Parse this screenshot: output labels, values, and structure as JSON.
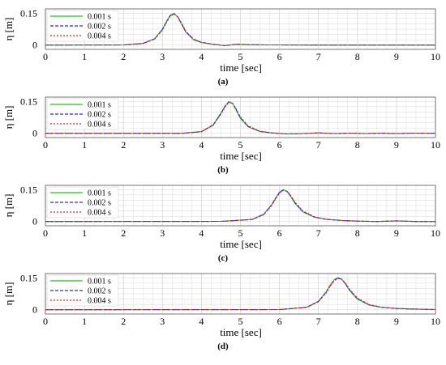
{
  "colors": {
    "s1": "#22c322",
    "s2": "#2a2ad8",
    "s3": "#e02020",
    "grid": "#d6d6d6",
    "axis": "#000000"
  },
  "chart_data": [
    {
      "type": "line",
      "caption": "(a)",
      "xlabel": "time [sec]",
      "ylabel": "η [m]",
      "xlim": [
        0,
        10
      ],
      "ylim": [
        -0.02,
        0.17
      ],
      "xticks": [
        "0",
        "1",
        "2",
        "3",
        "4",
        "5",
        "6",
        "7",
        "8",
        "9",
        "10"
      ],
      "yticks": [
        "0",
        "0.15"
      ],
      "grid": true,
      "legend_position": "top-left",
      "x": [
        0,
        2.0,
        2.5,
        2.8,
        3.0,
        3.1,
        3.2,
        3.3,
        3.4,
        3.5,
        3.6,
        3.8,
        4.0,
        4.3,
        4.6,
        4.9,
        5.2,
        5.6,
        6.0,
        7.0,
        8.0,
        9.0,
        10.0
      ],
      "series": [
        {
          "name": "0.001 s",
          "values": [
            0,
            0.001,
            0.008,
            0.03,
            0.075,
            0.11,
            0.14,
            0.149,
            0.13,
            0.095,
            0.06,
            0.025,
            0.012,
            0.004,
            -0.002,
            0.004,
            0.002,
            0.001,
            0.001,
            0.0,
            0.0,
            0.0,
            0.0
          ]
        },
        {
          "name": "0.002 s",
          "values": [
            0,
            0.001,
            0.008,
            0.029,
            0.073,
            0.108,
            0.138,
            0.147,
            0.131,
            0.098,
            0.063,
            0.027,
            0.013,
            0.004,
            -0.002,
            0.004,
            0.002,
            0.001,
            0.001,
            0.0,
            0.0,
            0.0,
            0.0
          ]
        },
        {
          "name": "0.004 s",
          "values": [
            0,
            0.001,
            0.007,
            0.028,
            0.07,
            0.105,
            0.135,
            0.146,
            0.132,
            0.1,
            0.065,
            0.028,
            0.013,
            0.004,
            -0.002,
            0.004,
            0.002,
            0.001,
            0.001,
            0.0,
            0.0,
            0.0,
            0.0
          ]
        }
      ]
    },
    {
      "type": "line",
      "caption": "(b)",
      "xlabel": "time [sec]",
      "ylabel": "η [m]",
      "xlim": [
        0,
        10
      ],
      "ylim": [
        -0.02,
        0.17
      ],
      "xticks": [
        "0",
        "1",
        "2",
        "3",
        "4",
        "5",
        "6",
        "7",
        "8",
        "9",
        "10"
      ],
      "yticks": [
        "0",
        "0.15"
      ],
      "grid": true,
      "legend_position": "top-left",
      "x": [
        0,
        3.5,
        4.0,
        4.3,
        4.5,
        4.6,
        4.7,
        4.8,
        4.9,
        5.0,
        5.2,
        5.5,
        5.8,
        6.2,
        6.6,
        7.0,
        7.4,
        7.8,
        8.2,
        8.6,
        9.0,
        9.4,
        10.0
      ],
      "series": [
        {
          "name": "0.001 s",
          "values": [
            0,
            0.0,
            0.008,
            0.04,
            0.095,
            0.128,
            0.149,
            0.14,
            0.105,
            0.07,
            0.03,
            0.008,
            0.002,
            -0.003,
            -0.001,
            0.002,
            -0.001,
            0.001,
            -0.001,
            0.001,
            -0.001,
            0.001,
            0.0
          ]
        },
        {
          "name": "0.002 s",
          "values": [
            0,
            0.0,
            0.008,
            0.039,
            0.093,
            0.126,
            0.147,
            0.141,
            0.108,
            0.073,
            0.032,
            0.009,
            0.002,
            -0.003,
            -0.001,
            0.002,
            -0.001,
            0.001,
            -0.001,
            0.001,
            -0.001,
            0.001,
            0.0
          ]
        },
        {
          "name": "0.004 s",
          "values": [
            0,
            0.0,
            0.007,
            0.037,
            0.09,
            0.123,
            0.145,
            0.142,
            0.112,
            0.077,
            0.035,
            0.01,
            0.003,
            -0.003,
            -0.001,
            0.002,
            -0.001,
            0.001,
            -0.001,
            0.001,
            -0.001,
            0.001,
            0.0
          ]
        }
      ]
    },
    {
      "type": "line",
      "caption": "(c)",
      "xlabel": "time [sec]",
      "ylabel": "η [m]",
      "xlim": [
        0,
        10
      ],
      "ylim": [
        -0.02,
        0.17
      ],
      "xticks": [
        "0",
        "1",
        "2",
        "3",
        "4",
        "5",
        "6",
        "7",
        "8",
        "9",
        "10"
      ],
      "yticks": [
        "0",
        "0.15"
      ],
      "grid": true,
      "legend_position": "top-left",
      "x": [
        0,
        4.5,
        5.3,
        5.6,
        5.8,
        5.9,
        6.0,
        6.1,
        6.2,
        6.3,
        6.4,
        6.6,
        6.9,
        7.2,
        7.6,
        8.0,
        8.5,
        9.0,
        9.5,
        10.0
      ],
      "series": [
        {
          "name": "0.001 s",
          "values": [
            0,
            0.001,
            0.01,
            0.035,
            0.08,
            0.11,
            0.138,
            0.15,
            0.14,
            0.115,
            0.085,
            0.045,
            0.02,
            0.01,
            0.005,
            0.002,
            0.0,
            0.003,
            0.0,
            0.0
          ]
        },
        {
          "name": "0.002 s",
          "values": [
            0,
            0.001,
            0.01,
            0.034,
            0.078,
            0.108,
            0.136,
            0.148,
            0.141,
            0.117,
            0.088,
            0.047,
            0.021,
            0.01,
            0.005,
            0.002,
            0.0,
            0.003,
            0.0,
            0.0
          ]
        },
        {
          "name": "0.004 s",
          "values": [
            0,
            0.001,
            0.009,
            0.032,
            0.075,
            0.105,
            0.133,
            0.146,
            0.142,
            0.12,
            0.091,
            0.05,
            0.022,
            0.011,
            0.005,
            0.002,
            0.0,
            0.003,
            0.0,
            0.0
          ]
        }
      ]
    },
    {
      "type": "line",
      "caption": "(d)",
      "xlabel": "time [sec]",
      "ylabel": "η [m]",
      "xlim": [
        0,
        10
      ],
      "ylim": [
        -0.02,
        0.17
      ],
      "xticks": [
        "0",
        "1",
        "2",
        "3",
        "4",
        "5",
        "6",
        "7",
        "8",
        "9",
        "10"
      ],
      "yticks": [
        "0",
        "0.15"
      ],
      "grid": true,
      "legend_position": "top-left",
      "x": [
        0,
        6.0,
        6.7,
        7.0,
        7.2,
        7.3,
        7.4,
        7.5,
        7.6,
        7.7,
        7.8,
        8.0,
        8.3,
        8.6,
        9.0,
        9.5,
        10.0
      ],
      "series": [
        {
          "name": "0.001 s",
          "values": [
            0,
            0.001,
            0.012,
            0.04,
            0.085,
            0.115,
            0.14,
            0.151,
            0.142,
            0.118,
            0.09,
            0.05,
            0.022,
            0.012,
            0.006,
            0.003,
            0.001
          ]
        },
        {
          "name": "0.002 s",
          "values": [
            0,
            0.001,
            0.012,
            0.039,
            0.083,
            0.113,
            0.138,
            0.149,
            0.143,
            0.12,
            0.093,
            0.052,
            0.023,
            0.012,
            0.006,
            0.003,
            0.001
          ]
        },
        {
          "name": "0.004 s",
          "values": [
            0,
            0.001,
            0.011,
            0.037,
            0.08,
            0.11,
            0.135,
            0.147,
            0.144,
            0.123,
            0.096,
            0.055,
            0.024,
            0.013,
            0.006,
            0.003,
            0.001
          ]
        }
      ]
    }
  ]
}
